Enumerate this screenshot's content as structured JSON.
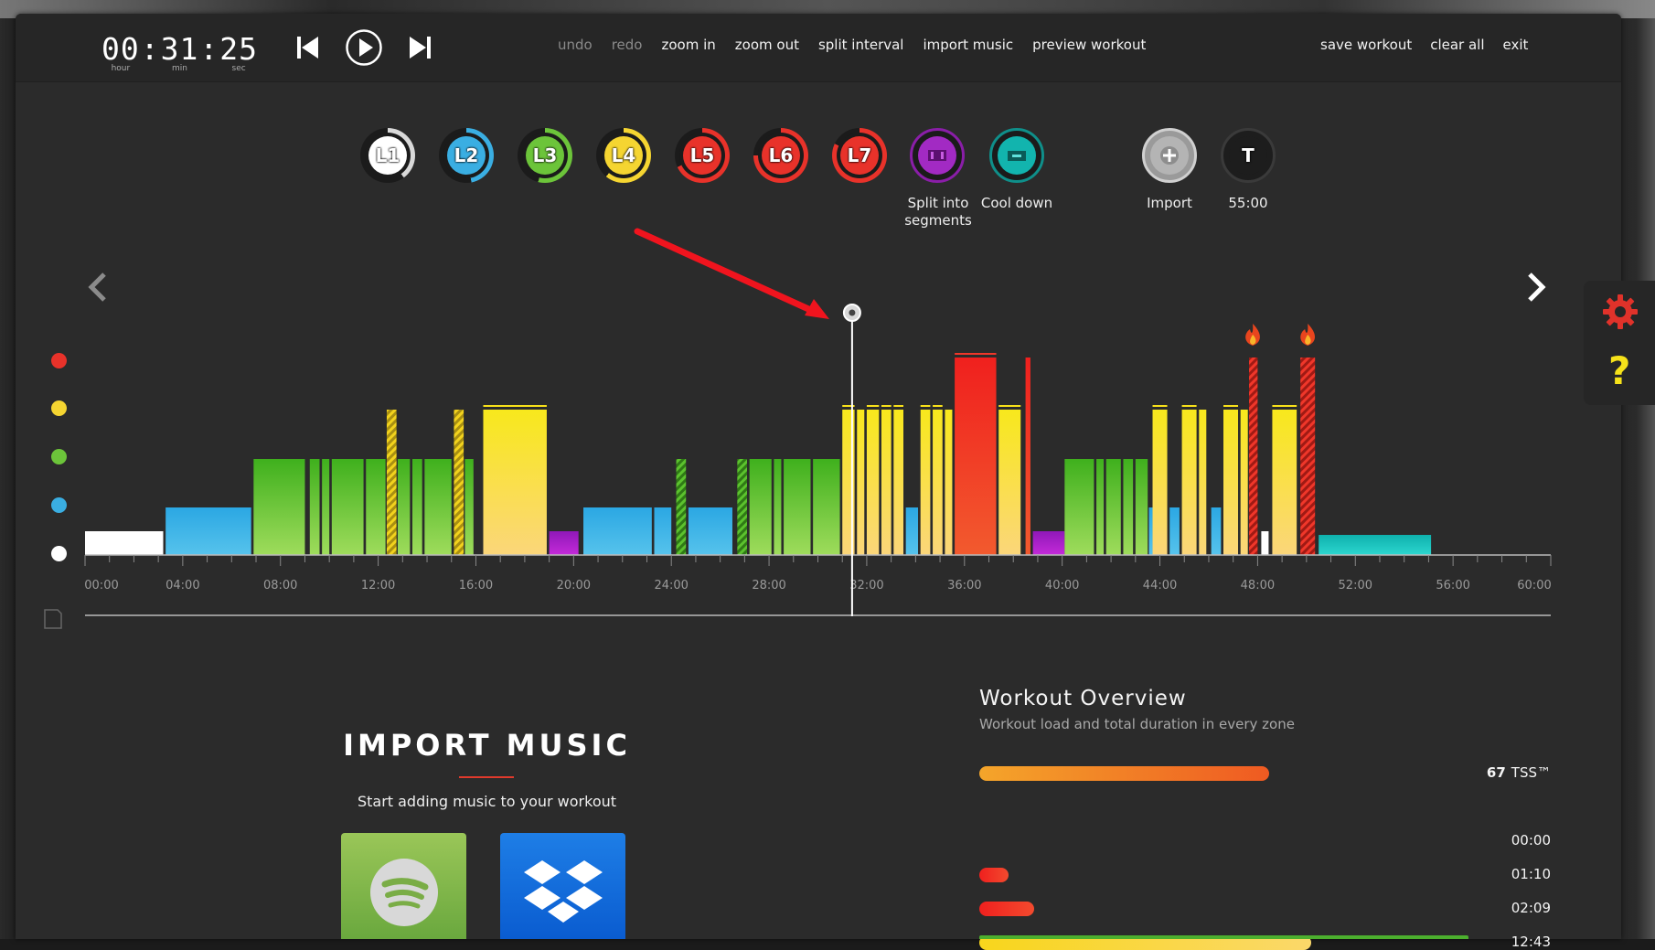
{
  "clock": {
    "hours": "00",
    "minutes": "31",
    "seconds": "25",
    "unit_hour": "hour",
    "unit_min": "min",
    "unit_sec": "sec"
  },
  "transport": {
    "prev": "skip-back-icon",
    "play": "play-icon",
    "next": "skip-forward-icon"
  },
  "menu": {
    "undo": "undo",
    "redo": "redo",
    "zoom_in": "zoom in",
    "zoom_out": "zoom out",
    "split_interval": "split interval",
    "import_music": "import music",
    "preview_workout": "preview workout"
  },
  "menu_right": {
    "save": "save workout",
    "clear": "clear all",
    "exit": "exit"
  },
  "levels": [
    {
      "label": "L1",
      "color": "#ffffff",
      "ring": "#d9d9d9"
    },
    {
      "label": "L2",
      "color": "#3aaee2",
      "ring": "#3aaee2"
    },
    {
      "label": "L3",
      "color": "#6cc43a",
      "ring": "#6cc43a"
    },
    {
      "label": "L4",
      "color": "#f5d531",
      "ring": "#f5d531"
    },
    {
      "label": "L5",
      "color": "#e8322a",
      "ring": "#e8322a"
    },
    {
      "label": "L6",
      "color": "#e8322a",
      "ring": "#e8322a"
    },
    {
      "label": "L7",
      "color": "#e8322a",
      "ring": "#e8322a"
    }
  ],
  "tools": {
    "split_label": "Split into segments",
    "cooldown_label": "Cool down",
    "import_label": "Import",
    "time_icon_letter": "T",
    "time_label": "55:00"
  },
  "axis_ticks": [
    "00:00",
    "04:00",
    "08:00",
    "12:00",
    "16:00",
    "20:00",
    "24:00",
    "28:00",
    "32:00",
    "36:00",
    "40:00",
    "44:00",
    "48:00",
    "52:00",
    "56:00",
    "60:00"
  ],
  "zone_dot_colors": [
    "#e8322a",
    "#f5d531",
    "#6cc43a",
    "#3aaee2",
    "#ffffff"
  ],
  "colors": {
    "white": "#ffffff",
    "blue": "#36b6e6",
    "green": "#5cc22e",
    "yellow": "#f8e11a",
    "red": "#f0372a",
    "purple": "#b01ec8",
    "teal": "#19c4bd"
  },
  "import_music": {
    "title": "IMPORT MUSIC",
    "subtitle": "Start adding music to your workout"
  },
  "overview": {
    "title": "Workout Overview",
    "subtitle": "Workout load and total duration in every zone",
    "rows": [
      {
        "value": "67",
        "unit": "TSS™",
        "fill": 0.36
      },
      {
        "value": "00:00",
        "fill": 0
      },
      {
        "value": "01:10",
        "fill": 0.036
      },
      {
        "value": "02:09",
        "fill": 0.068
      },
      {
        "value": "12:43",
        "fill": 0.412
      }
    ]
  },
  "playhead_time_min": 31.4
}
